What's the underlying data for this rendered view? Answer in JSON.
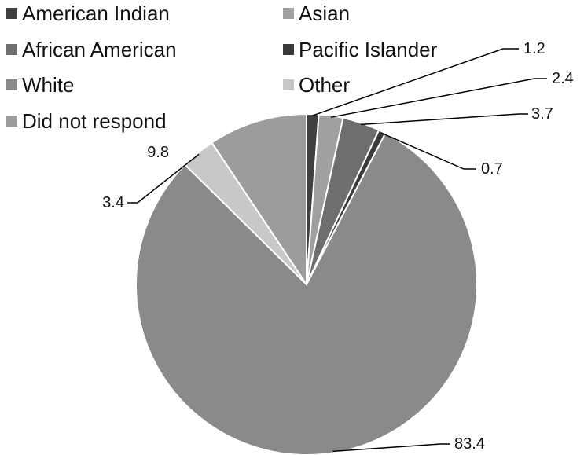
{
  "chart_data": {
    "type": "pie",
    "title": "",
    "categories": [
      "American Indian",
      "Asian",
      "African American",
      "Pacific Islander",
      "White",
      "Other",
      "Did not respond"
    ],
    "values": [
      1.2,
      2.4,
      3.7,
      0.7,
      83.4,
      3.4,
      9.8
    ],
    "data_labels": [
      "1.2",
      "2.4",
      "3.7",
      "0.7",
      "83.4",
      "3.4",
      "9.8"
    ],
    "colors": [
      "#404040",
      "#a0a0a0",
      "#6e6e6e",
      "#3a3a3a",
      "#8a8a8a",
      "#c8c8c8",
      "#9c9c9c"
    ],
    "legend_position": "top",
    "start_angle_deg": 0,
    "direction": "clockwise"
  }
}
